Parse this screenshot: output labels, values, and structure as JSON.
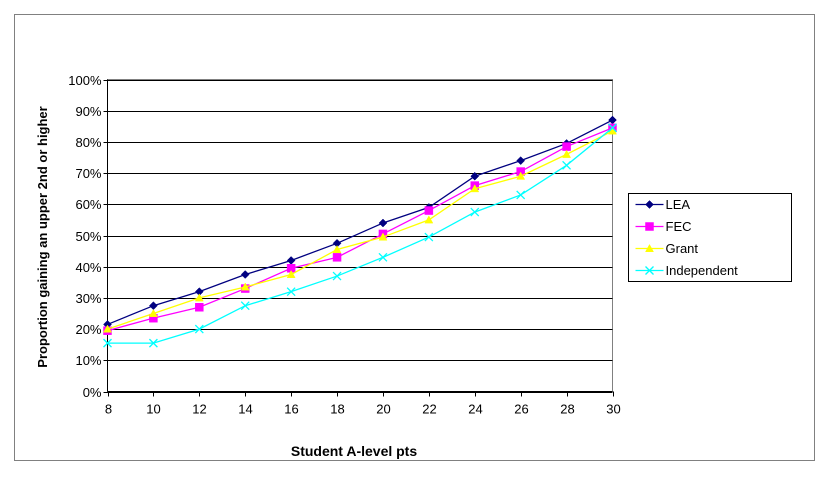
{
  "chart_data": {
    "type": "line",
    "title": "",
    "xlabel": "Student A-level pts",
    "ylabel": "Proportion gaining an upper 2nd or higher",
    "x": [
      8,
      10,
      12,
      14,
      16,
      18,
      20,
      22,
      24,
      26,
      28,
      30
    ],
    "xlim": [
      8,
      30
    ],
    "ylim": [
      0,
      100
    ],
    "y_ticks": [
      "0%",
      "10%",
      "20%",
      "30%",
      "40%",
      "50%",
      "60%",
      "70%",
      "80%",
      "90%",
      "100%"
    ],
    "y_tick_values": [
      0,
      10,
      20,
      30,
      40,
      50,
      60,
      70,
      80,
      90,
      100
    ],
    "grid": true,
    "legend_position": "right",
    "series": [
      {
        "name": "LEA",
        "color": "#000080",
        "marker": "diamond",
        "values": [
          21.5,
          27.5,
          32,
          37.5,
          42,
          47.5,
          54,
          59,
          69,
          74,
          79.5,
          87
        ]
      },
      {
        "name": "FEC",
        "color": "#FF00FF",
        "marker": "square",
        "values": [
          19.5,
          23.5,
          27,
          33,
          39.5,
          43,
          50.5,
          58,
          66,
          70.5,
          78.5,
          84.5
        ]
      },
      {
        "name": "Grant",
        "color": "#FFFF00",
        "marker": "triangle",
        "values": [
          20,
          25,
          30,
          33.5,
          37.5,
          45.5,
          49.5,
          55,
          65,
          69,
          76,
          83.5
        ]
      },
      {
        "name": "Independent",
        "color": "#00FFFF",
        "marker": "x",
        "values": [
          15.5,
          15.5,
          20,
          27.5,
          32,
          37,
          43,
          49.5,
          57.5,
          63,
          72.5,
          84.5
        ]
      }
    ]
  }
}
